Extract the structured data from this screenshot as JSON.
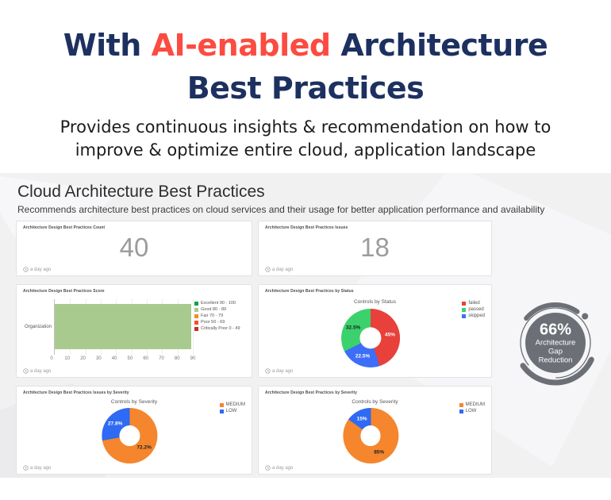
{
  "hero": {
    "title_part1": "With ",
    "title_highlight": "AI-enabled",
    "title_part2": " Architecture",
    "title_line2": "Best Practices",
    "subtitle_line1": "Provides continuous insights & recommendation on how to",
    "subtitle_line2": "improve & optimize entire cloud, application landscape"
  },
  "dashboard": {
    "title": "Cloud Architecture Best Practices",
    "subtitle": "Recommends architecture best practices on cloud services and their usage for better application performance and availability",
    "timestamp": "a day ago"
  },
  "badge": {
    "value": "66%",
    "line1": "Architecture",
    "line2": "Gap",
    "line3": "Reduction"
  },
  "colors": {
    "navy": "#1d3160",
    "accent_red": "#fc4b40",
    "band_bg": "#f1f1f2",
    "stat_grey": "#9c9c9c",
    "badge_grey": "#6c7076"
  },
  "chart_data": [
    {
      "type": "stat",
      "title": "Architecture Design Best Practices Count",
      "value": "40"
    },
    {
      "type": "stat",
      "title": "Architecture Design Best Practices Issues",
      "value": "18"
    },
    {
      "type": "bar",
      "title": "Architecture Design Best Practices Score",
      "orientation": "horizontal",
      "categories": [
        "Organization"
      ],
      "values": [
        89
      ],
      "bar_color": "#a9ca8f",
      "xlim": [
        0,
        90
      ],
      "xticks": [
        0,
        10,
        20,
        30,
        40,
        50,
        60,
        70,
        80,
        90
      ],
      "legend": [
        {
          "label": "Excellent 90 - 100",
          "color": "#0fa14e"
        },
        {
          "label": "Good 80 - 89",
          "color": "#a9ca8f"
        },
        {
          "label": "Fair 70 - 79",
          "color": "#f28b27"
        },
        {
          "label": "Poor 50 - 69",
          "color": "#f4502c"
        },
        {
          "label": "Critically Poor 0 - 49",
          "color": "#c62f21"
        }
      ]
    },
    {
      "type": "pie",
      "title": "Architecture Design Best Practices by Status",
      "chart_title": "Controls by Status",
      "slices": [
        {
          "label": "failed",
          "value": 45,
          "color": "#e8403a",
          "text": "45%",
          "text_color": "#ffffff"
        },
        {
          "label": "skipped",
          "value": 22.5,
          "color": "#3d6ef7",
          "text": "22.5%",
          "text_color": "#ffffff"
        },
        {
          "label": "passed",
          "value": 32.5,
          "color": "#3bd16d",
          "text": "32.5%",
          "text_color": "#222222"
        }
      ],
      "legend": [
        {
          "label": "failed",
          "color": "#e8403a"
        },
        {
          "label": "passed",
          "color": "#3bd16d"
        },
        {
          "label": "skipped",
          "color": "#3d6ef7"
        }
      ]
    },
    {
      "type": "pie",
      "title": "Architecture Design Best Practices Issues by Severity",
      "chart_title": "Controls by Severity",
      "slices": [
        {
          "label": "MEDIUM",
          "value": 72.2,
          "color": "#f5862d",
          "text": "72.2%",
          "text_color": "#222222"
        },
        {
          "label": "LOW",
          "value": 27.8,
          "color": "#2e6af3",
          "text": "27.8%",
          "text_color": "#ffffff"
        }
      ],
      "legend": [
        {
          "label": "MEDIUM",
          "color": "#f5862d"
        },
        {
          "label": "LOW",
          "color": "#2e6af3"
        }
      ]
    },
    {
      "type": "pie",
      "title": "Architecture Design Best Practices by Severity",
      "chart_title": "Controls by Severity",
      "slices": [
        {
          "label": "MEDIUM",
          "value": 85,
          "color": "#f5862d",
          "text": "85%",
          "text_color": "#222222"
        },
        {
          "label": "LOW",
          "value": 15,
          "color": "#2e6af3",
          "text": "15%",
          "text_color": "#ffffff"
        }
      ],
      "legend": [
        {
          "label": "MEDIUM",
          "color": "#f5862d"
        },
        {
          "label": "LOW",
          "color": "#2e6af3"
        }
      ]
    }
  ]
}
